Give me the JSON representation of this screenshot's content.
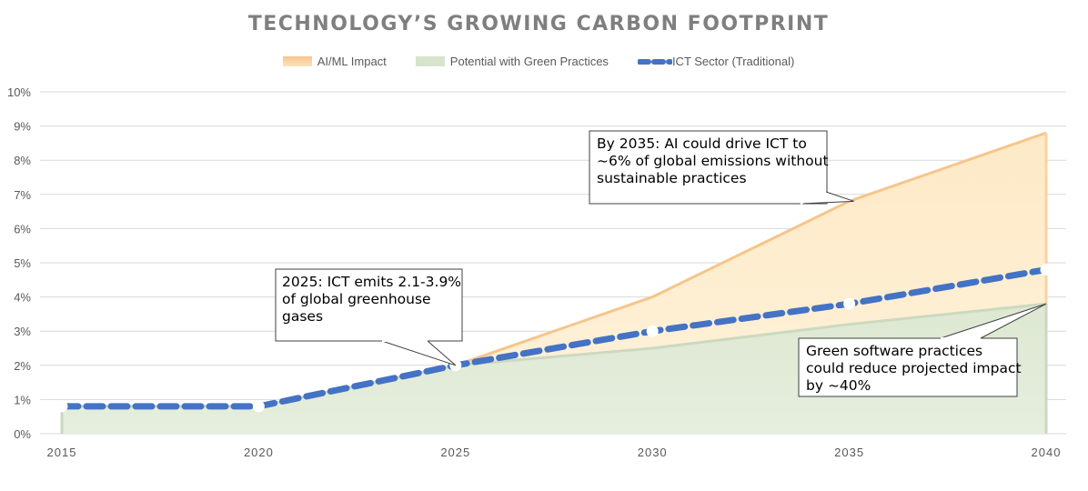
{
  "chart_data": {
    "type": "area",
    "title": "TECHNOLOGY’S GROWING CARBON FOOTPRINT",
    "x": [
      "2015",
      "2020",
      "2025",
      "2030",
      "2035",
      "2040"
    ],
    "y_ticks": [
      "0%",
      "1%",
      "2%",
      "3%",
      "4%",
      "5%",
      "6%",
      "7%",
      "8%",
      "9%",
      "10%"
    ],
    "ylim": [
      0,
      10
    ],
    "grid": true,
    "legend_position": "top",
    "series": [
      {
        "name": "AI/ML Impact",
        "kind": "area",
        "values": [
          0.8,
          0.8,
          2.0,
          4.0,
          6.8,
          8.8
        ],
        "color": "#f6c58b"
      },
      {
        "name": "Potential with Green Practices",
        "kind": "area",
        "values": [
          0.8,
          0.8,
          2.0,
          2.5,
          3.2,
          3.8
        ],
        "color": "#d8e3cc"
      },
      {
        "name": "ICT Sector (Traditional)",
        "kind": "dashed-line",
        "values": [
          0.8,
          0.8,
          2.0,
          3.0,
          3.8,
          4.8
        ],
        "color": "#4472c4"
      }
    ],
    "annotations": [
      {
        "id": "2025",
        "text": "2025: ICT emits 2.1-3.9%\nof global greenhouse\ngases",
        "target_x": "2025",
        "target_y": 2.0
      },
      {
        "id": "2035",
        "text": "By 2035: AI could drive ICT to\n~6% of global emissions without\nsustainable practices",
        "target_x": "2035",
        "target_y": 6.8
      },
      {
        "id": "green",
        "text": "Green software practices\ncould reduce projected impact\nby ~40%",
        "target_x": "2040",
        "target_y": 3.8
      }
    ]
  }
}
